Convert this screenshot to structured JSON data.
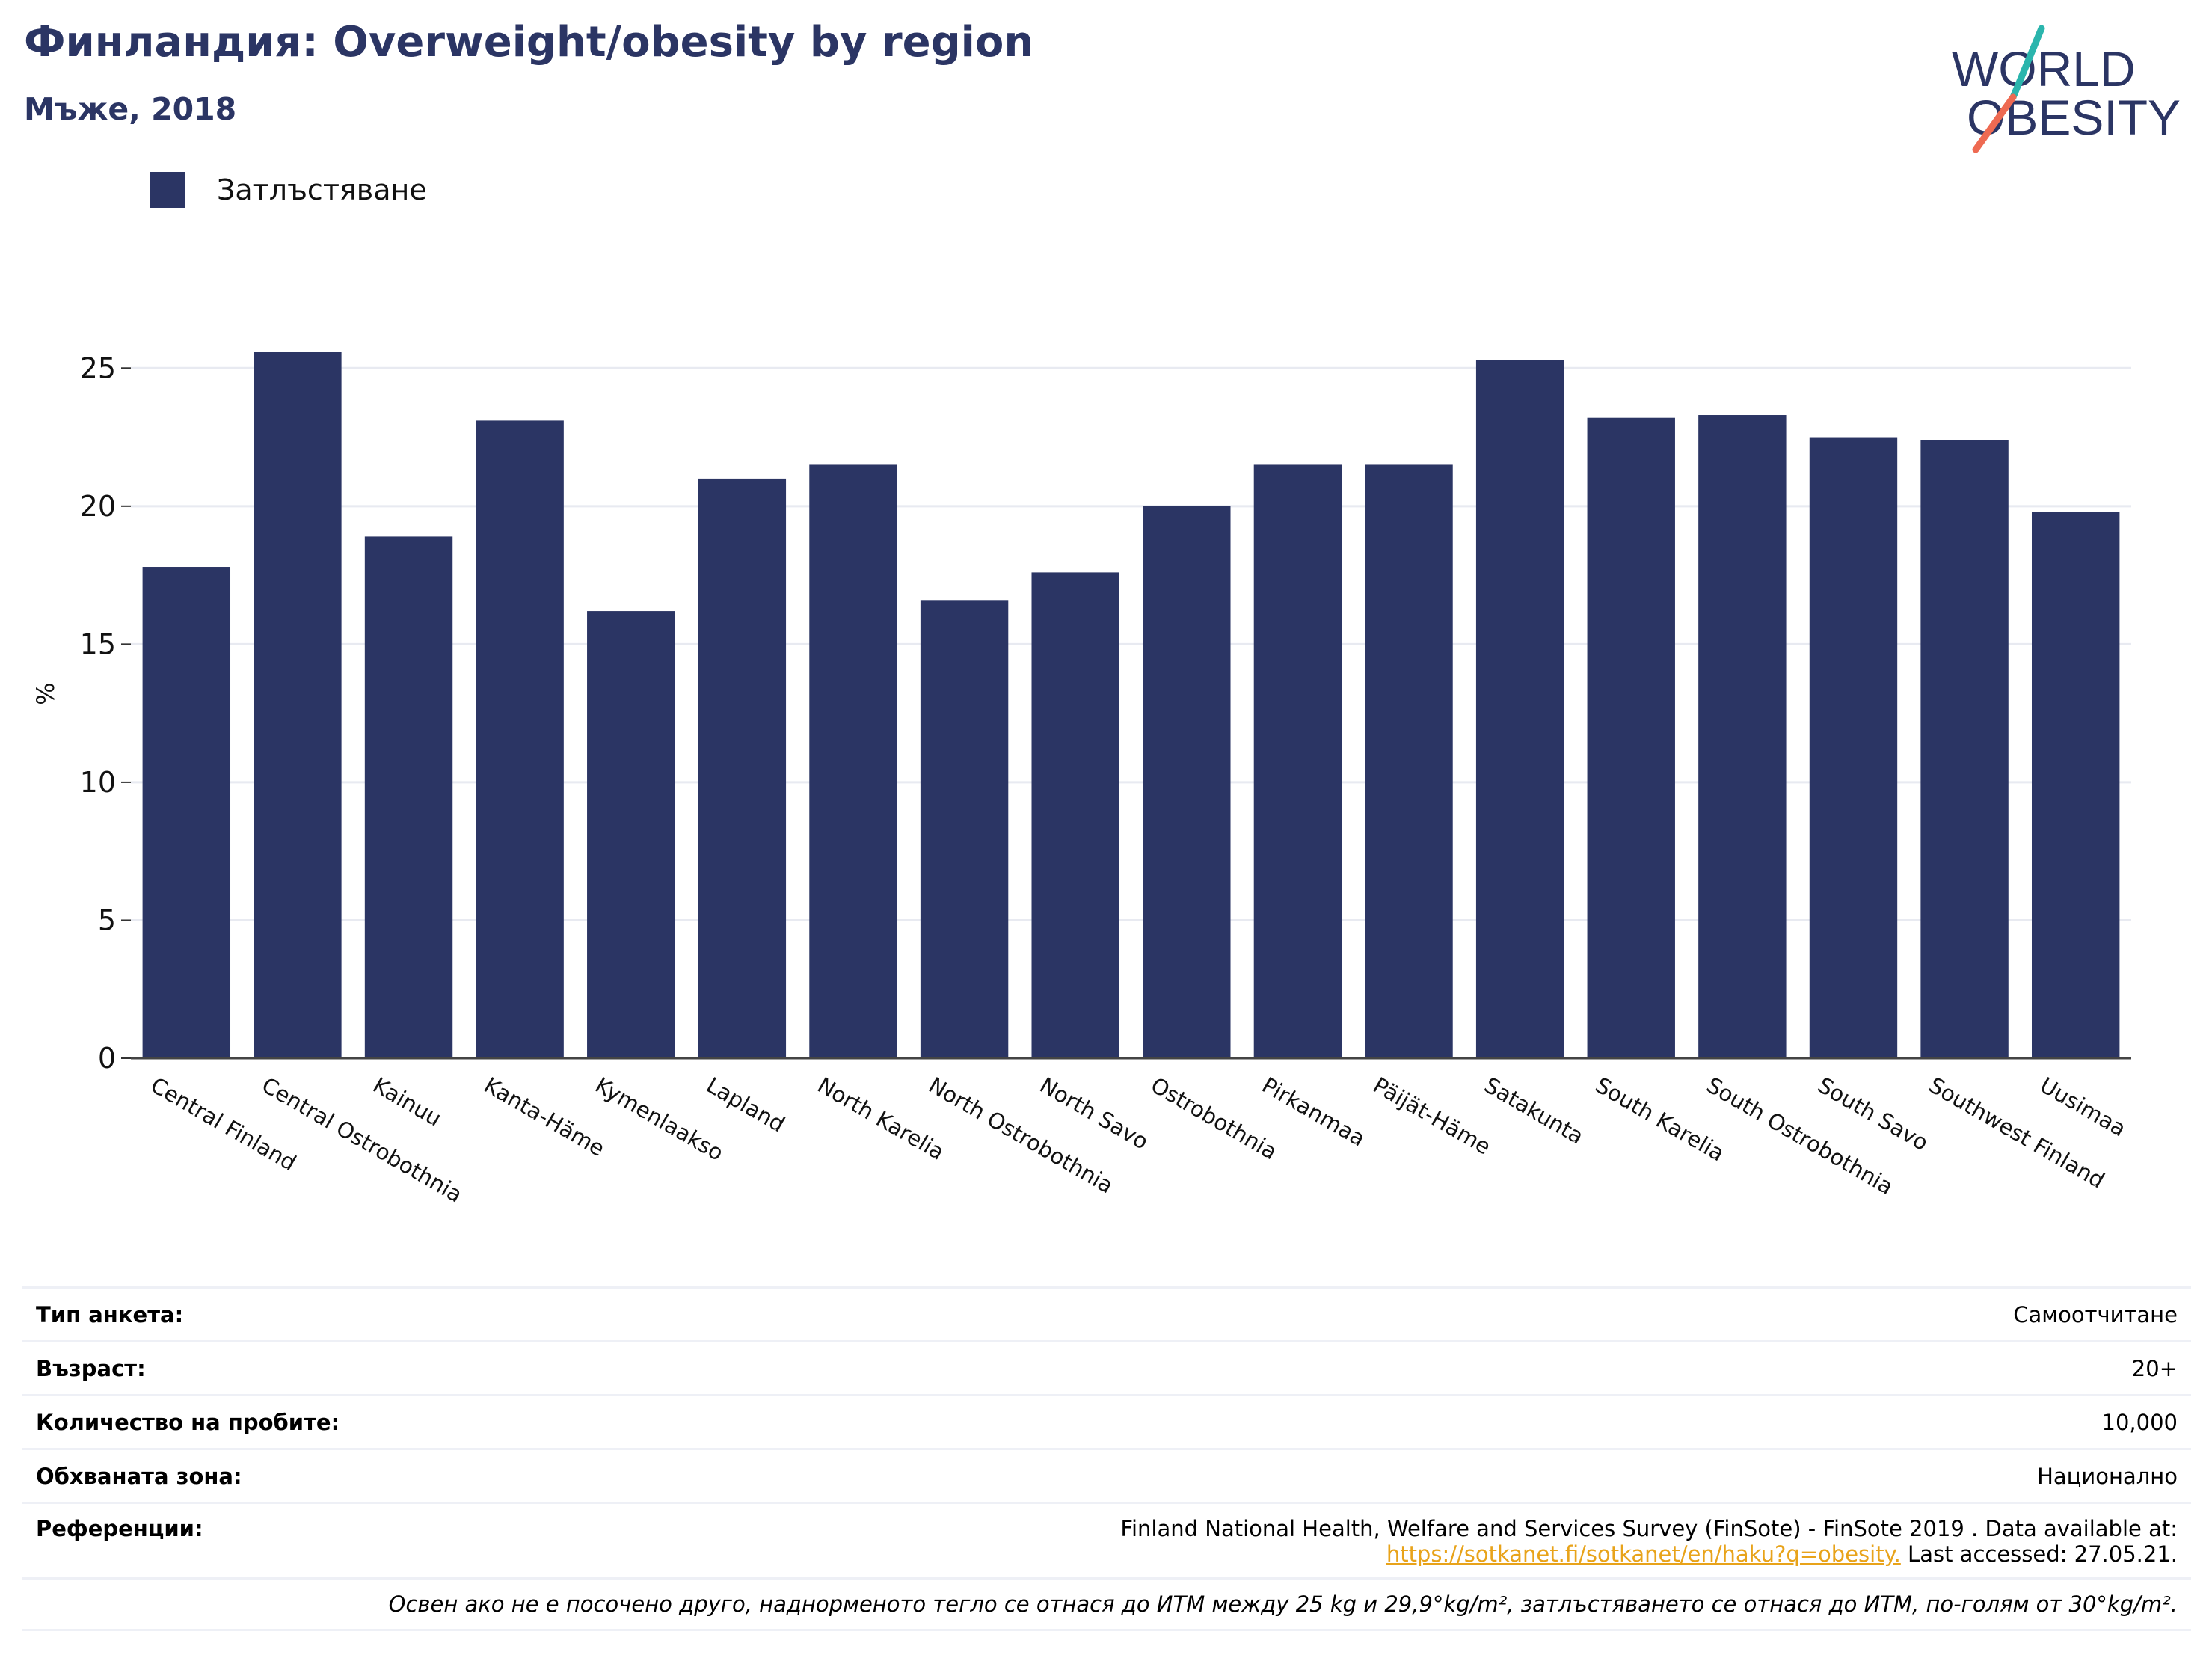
{
  "header": {
    "title": "Финландия: Overweight/obesity by region",
    "subtitle": "Мъже, 2018",
    "logo_line1": "WORLD",
    "logo_line2": "OBESITY"
  },
  "legend": {
    "label": "Затлъстяване",
    "color": "#2b3564"
  },
  "chart_data": {
    "type": "bar",
    "categories": [
      "Central Finland",
      "Central Ostrobothnia",
      "Kainuu",
      "Kanta-Häme",
      "Kymenlaakso",
      "Lapland",
      "North Karelia",
      "North Ostrobothnia",
      "North Savo",
      "Ostrobothnia",
      "Pirkanmaa",
      "Päijät-Häme",
      "Satakunta",
      "South Karelia",
      "South Ostrobothnia",
      "South Savo",
      "Southwest Finland",
      "Uusimaa"
    ],
    "series": [
      {
        "name": "Затлъстяване",
        "values": [
          17.8,
          25.6,
          18.9,
          23.1,
          16.2,
          21.0,
          21.5,
          16.6,
          17.6,
          20.0,
          21.5,
          21.5,
          25.3,
          23.2,
          23.3,
          22.5,
          22.4,
          19.8
        ]
      }
    ],
    "ylabel": "%",
    "xlabel": "",
    "ylim": [
      0,
      27.5
    ],
    "yticks": [
      0,
      5,
      10,
      15,
      20,
      25
    ],
    "grid": true,
    "bar_color": "#2b3564"
  },
  "meta": {
    "survey_label": "Тип анкета:",
    "survey_value": "Самоотчитане",
    "age_label": "Възраст:",
    "age_value": "20+",
    "sample_label": "Количество на пробите:",
    "sample_value": "10,000",
    "area_label": "Обхваната зона:",
    "area_value": "Национално",
    "ref_label": "Референции:",
    "ref_text": "Finland National Health, Welfare and Services Survey (FinSote) - FinSote 2019 . Data available at:",
    "ref_link": "https://sotkanet.fi/sotkanet/en/haku?q=obesity.",
    "ref_accessed": " Last accessed: 27.05.21.",
    "note": "Освен ако не е посочено друго, наднорменото тегло се отнася до ИТМ между 25 kg и 29,9°kg/m², затлъстяването се отнася до ИТМ, по-голям от 30°kg/m²."
  }
}
